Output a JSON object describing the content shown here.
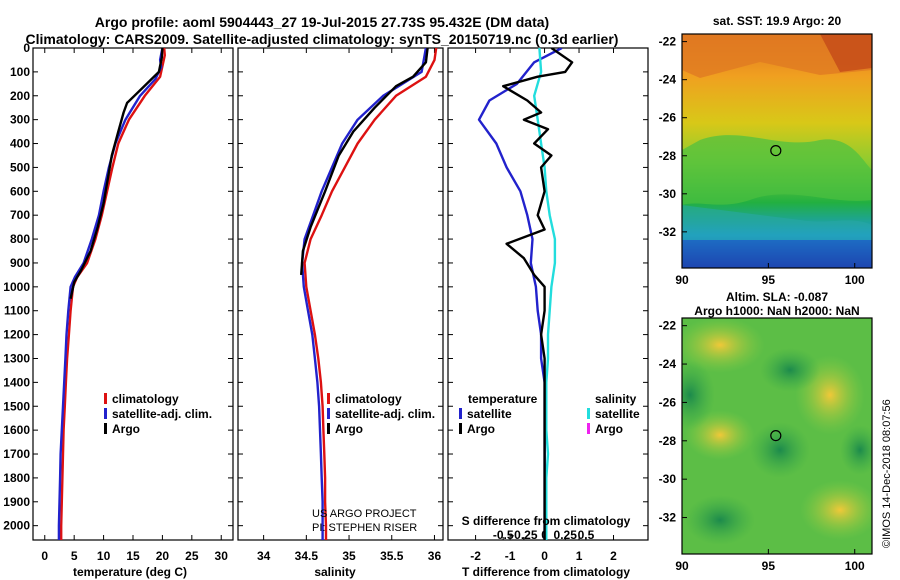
{
  "header": {
    "line1": "Argo profile: aoml 5904443_27 19-Jul-2015 27.73S 95.432E (DM data)",
    "line2": "Climatology: CARS2009. Satellite-adjusted climatology: synTS_20150719.nc (0.3d earlier)"
  },
  "colors": {
    "climatology": "#dd1111",
    "satellite": "#2222cc",
    "argo": "#000000",
    "sat_salinity": "#22dddd",
    "argo_salinity": "#ee22ee"
  },
  "depth_axis": {
    "range": [
      0,
      2060
    ],
    "ticks": [
      0,
      100,
      200,
      300,
      400,
      500,
      600,
      700,
      800,
      900,
      1000,
      1100,
      1200,
      1300,
      1400,
      1500,
      1600,
      1700,
      1800,
      1900,
      2000
    ]
  },
  "chart_data": [
    {
      "id": "temperature",
      "type": "line",
      "xlabel": "temperature (deg C)",
      "xlim": [
        -2,
        32
      ],
      "xticks": [
        0,
        5,
        10,
        15,
        20,
        25,
        30
      ],
      "legend": [
        "climatology",
        "satellite-adj. clim.",
        "Argo"
      ],
      "series": [
        {
          "name": "climatology",
          "color": "#dd1111",
          "points": [
            [
              20.3,
              0
            ],
            [
              20.4,
              30
            ],
            [
              19.6,
              120
            ],
            [
              17,
              200
            ],
            [
              14.3,
              300
            ],
            [
              12.5,
              400
            ],
            [
              11.5,
              500
            ],
            [
              10.6,
              600
            ],
            [
              9.7,
              700
            ],
            [
              8.6,
              800
            ],
            [
              7.2,
              900
            ],
            [
              5.5,
              960
            ],
            [
              4.8,
              1000
            ],
            [
              4.4,
              1100
            ],
            [
              4.1,
              1200
            ],
            [
              3.8,
              1300
            ],
            [
              3.6,
              1400
            ],
            [
              3.4,
              1500
            ],
            [
              3.2,
              1600
            ],
            [
              3.1,
              1700
            ],
            [
              3,
              1800
            ],
            [
              2.9,
              1900
            ],
            [
              2.8,
              2000
            ],
            [
              2.8,
              2060
            ]
          ]
        },
        {
          "name": "satellite-adj. clim.",
          "color": "#2222cc",
          "points": [
            [
              20,
              0
            ],
            [
              19.6,
              50
            ],
            [
              19.8,
              80
            ],
            [
              18.8,
              130
            ],
            [
              16.2,
              200
            ],
            [
              13.7,
              300
            ],
            [
              12,
              400
            ],
            [
              10.9,
              500
            ],
            [
              10,
              600
            ],
            [
              9.2,
              700
            ],
            [
              8,
              800
            ],
            [
              6.6,
              900
            ],
            [
              5.1,
              960
            ],
            [
              4.4,
              1000
            ],
            [
              4,
              1100
            ],
            [
              3.7,
              1200
            ],
            [
              3.5,
              1300
            ],
            [
              3.3,
              1400
            ],
            [
              3.1,
              1500
            ],
            [
              2.9,
              1600
            ],
            [
              2.7,
              1700
            ],
            [
              2.6,
              1800
            ],
            [
              2.5,
              1900
            ],
            [
              2.4,
              2000
            ],
            [
              2.4,
              2060
            ]
          ]
        },
        {
          "name": "Argo",
          "color": "#000000",
          "points": [
            [
              20,
              0
            ],
            [
              19.9,
              40
            ],
            [
              19.4,
              100
            ],
            [
              16.5,
              170
            ],
            [
              14,
              230
            ],
            [
              13.4,
              270
            ],
            [
              12.5,
              350
            ],
            [
              11.4,
              450
            ],
            [
              10.7,
              550
            ],
            [
              10,
              650
            ],
            [
              9,
              750
            ],
            [
              7.8,
              850
            ],
            [
              6.2,
              930
            ],
            [
              5,
              980
            ],
            [
              4.4,
              1050
            ]
          ]
        }
      ]
    },
    {
      "id": "salinity",
      "type": "line",
      "xlabel": "salinity",
      "xlim": [
        33.7,
        36.1
      ],
      "xticks": [
        34,
        34.5,
        35,
        35.5,
        36
      ],
      "xticklabels": [
        "34",
        "34.5",
        "35",
        "35.5",
        "36"
      ],
      "legend": [
        "climatology",
        "satellite-adj. clim.",
        "Argo"
      ],
      "series": [
        {
          "name": "climatology",
          "color": "#dd1111",
          "points": [
            [
              36.02,
              0
            ],
            [
              36,
              50
            ],
            [
              35.9,
              120
            ],
            [
              35.55,
              200
            ],
            [
              35.3,
              300
            ],
            [
              35.1,
              400
            ],
            [
              34.95,
              500
            ],
            [
              34.8,
              600
            ],
            [
              34.68,
              700
            ],
            [
              34.55,
              800
            ],
            [
              34.48,
              900
            ],
            [
              34.5,
              1000
            ],
            [
              34.55,
              1100
            ],
            [
              34.6,
              1200
            ],
            [
              34.64,
              1300
            ],
            [
              34.67,
              1400
            ],
            [
              34.69,
              1500
            ],
            [
              34.7,
              1600
            ],
            [
              34.71,
              1700
            ],
            [
              34.72,
              1800
            ],
            [
              34.72,
              1900
            ],
            [
              34.73,
              2000
            ],
            [
              34.73,
              2060
            ]
          ]
        },
        {
          "name": "satellite-adj. clim.",
          "color": "#2222cc",
          "points": [
            [
              35.9,
              0
            ],
            [
              35.88,
              40
            ],
            [
              35.85,
              100
            ],
            [
              35.4,
              200
            ],
            [
              35.1,
              300
            ],
            [
              34.92,
              400
            ],
            [
              34.8,
              500
            ],
            [
              34.68,
              600
            ],
            [
              34.58,
              700
            ],
            [
              34.48,
              800
            ],
            [
              34.45,
              900
            ],
            [
              34.47,
              1000
            ],
            [
              34.52,
              1100
            ],
            [
              34.57,
              1200
            ],
            [
              34.6,
              1300
            ],
            [
              34.63,
              1400
            ],
            [
              34.65,
              1500
            ],
            [
              34.66,
              1600
            ],
            [
              34.67,
              1700
            ],
            [
              34.68,
              1800
            ],
            [
              34.69,
              1900
            ],
            [
              34.69,
              2000
            ],
            [
              34.69,
              2060
            ]
          ]
        },
        {
          "name": "Argo",
          "color": "#000000",
          "points": [
            [
              35.92,
              0
            ],
            [
              35.9,
              60
            ],
            [
              35.75,
              120
            ],
            [
              35.55,
              160
            ],
            [
              35.3,
              250
            ],
            [
              35.05,
              350
            ],
            [
              34.88,
              450
            ],
            [
              34.72,
              600
            ],
            [
              34.55,
              750
            ],
            [
              34.46,
              850
            ],
            [
              34.44,
              950
            ]
          ]
        }
      ]
    },
    {
      "id": "difference",
      "type": "line",
      "xlabel": "T difference from climatology",
      "xlabel2": "S difference from climatology",
      "xlim": [
        -2.8,
        3
      ],
      "xticks": [
        -2,
        -1,
        0,
        1,
        2
      ],
      "s_scale": 2.4,
      "s_ticks": [
        -0.5,
        -0.25,
        0,
        0.25,
        0.5
      ],
      "s_ticklabels": [
        "-0.5",
        "-0.25",
        "0",
        "0.25",
        "0.5"
      ],
      "legend_t_title": "temperature",
      "legend_s_title": "salinity",
      "legend": [
        "satellite",
        "Argo",
        "satellite",
        "Argo"
      ],
      "series": [
        {
          "name": "T satellite",
          "color": "#2222cc",
          "points": [
            [
              0.5,
              0
            ],
            [
              -0.3,
              60
            ],
            [
              -0.8,
              150
            ],
            [
              -1.6,
              220
            ],
            [
              -1.9,
              300
            ],
            [
              -1.4,
              400
            ],
            [
              -1.1,
              500
            ],
            [
              -0.7,
              600
            ],
            [
              -0.5,
              700
            ],
            [
              -0.35,
              800
            ],
            [
              -0.4,
              900
            ],
            [
              -0.25,
              1000
            ],
            [
              -0.2,
              1100
            ],
            [
              -0.1,
              1200
            ],
            [
              -0.1,
              1300
            ],
            [
              0,
              1400
            ],
            [
              0,
              1500
            ],
            [
              0,
              1600
            ],
            [
              0,
              1700
            ],
            [
              0,
              1800
            ],
            [
              0,
              1900
            ],
            [
              0,
              2000
            ],
            [
              0,
              2060
            ]
          ]
        },
        {
          "name": "S satellite",
          "color": "#22dddd",
          "points": [
            [
              -0.15,
              0
            ],
            [
              -0.1,
              100
            ],
            [
              -0.3,
              200
            ],
            [
              -0.2,
              300
            ],
            [
              -0.1,
              400
            ],
            [
              0,
              500
            ],
            [
              0.05,
              600
            ],
            [
              0.15,
              700
            ],
            [
              0.3,
              800
            ],
            [
              0.3,
              900
            ],
            [
              0.2,
              1000
            ],
            [
              0.15,
              1100
            ],
            [
              0.1,
              1200
            ],
            [
              0.1,
              1300
            ],
            [
              0.05,
              1400
            ],
            [
              0.05,
              1500
            ],
            [
              0.05,
              1600
            ],
            [
              0.1,
              1700
            ],
            [
              0.05,
              1800
            ],
            [
              0.05,
              1900
            ],
            [
              0.05,
              2000
            ],
            [
              0.05,
              2060
            ]
          ]
        },
        {
          "name": "T Argo",
          "color": "#000000",
          "points": [
            [
              0.2,
              0
            ],
            [
              0.8,
              60
            ],
            [
              0.6,
              100
            ],
            [
              -0.2,
              120
            ],
            [
              -1.2,
              160
            ],
            [
              -0.5,
              220
            ],
            [
              -0.1,
              270
            ],
            [
              -0.6,
              300
            ],
            [
              0.1,
              340
            ],
            [
              -0.3,
              400
            ],
            [
              0.2,
              450
            ],
            [
              -0.1,
              500
            ],
            [
              0,
              600
            ],
            [
              -0.2,
              700
            ],
            [
              0,
              760
            ],
            [
              -1.1,
              820
            ],
            [
              -0.6,
              880
            ],
            [
              -0.3,
              950
            ],
            [
              0,
              1000
            ],
            [
              0,
              1100
            ],
            [
              -0.1,
              1200
            ],
            [
              0,
              1300
            ],
            [
              0,
              1400
            ],
            [
              0,
              1500
            ],
            [
              0,
              1600
            ],
            [
              0,
              1700
            ],
            [
              0,
              1800
            ],
            [
              0,
              1900
            ],
            [
              0,
              2000
            ],
            [
              0,
              2060
            ]
          ]
        }
      ]
    }
  ],
  "maps": [
    {
      "id": "sst",
      "title": "sat. SST: 19.9 Argo: 20",
      "xticks": [
        "90",
        "95",
        "100"
      ],
      "yticks": [
        "-22",
        "-24",
        "-26",
        "-28",
        "-30",
        "-32"
      ],
      "marker": [
        95.43,
        -27.73
      ]
    },
    {
      "id": "sla",
      "title": "Altim. SLA: -0.087",
      "title2": "Argo h1000: NaN h2000: NaN",
      "xticks": [
        "90",
        "95",
        "100"
      ],
      "yticks": [
        "-22",
        "-24",
        "-26",
        "-28",
        "-30",
        "-32"
      ],
      "marker": [
        95.43,
        -27.73
      ]
    }
  ],
  "credit": {
    "line1": "US ARGO PROJECT",
    "line2": "PI: STEPHEN RISER",
    "stamp": "©IMOS 14-Dec-2018 08:07:56"
  }
}
